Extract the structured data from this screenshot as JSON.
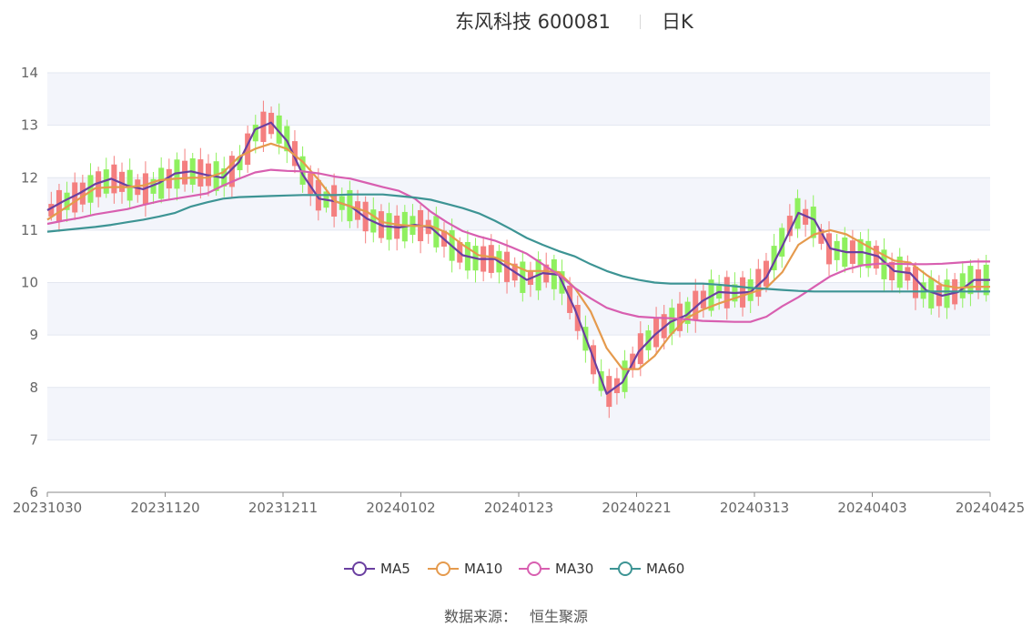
{
  "header": {
    "stock_name_code": "东风科技 600081",
    "period": "日K"
  },
  "source": {
    "label": "数据来源：",
    "value": "恒生聚源"
  },
  "colors": {
    "up": "#f47f7f",
    "down": "#8ff05e",
    "ma5": "#6a3fa0",
    "ma10": "#e59a4d",
    "ma30": "#d85fb0",
    "ma60": "#3d9494",
    "band": "#f3f5fb"
  },
  "chart_data": {
    "type": "candlestick",
    "ylim": [
      6,
      14
    ],
    "yticks": [
      6,
      7,
      8,
      9,
      10,
      11,
      12,
      13,
      14
    ],
    "xticks": [
      "20231030",
      "20231120",
      "20231211",
      "20240102",
      "20240123",
      "20240221",
      "20240313",
      "20240403",
      "20240425"
    ],
    "legend_position": "bottom-center",
    "series": [
      {
        "name": "MA5",
        "color": "#6a3fa0",
        "values": [
          11.38,
          11.55,
          11.7,
          11.88,
          11.98,
          11.85,
          11.78,
          11.9,
          12.08,
          12.12,
          12.05,
          12.0,
          12.3,
          12.92,
          13.05,
          12.7,
          12.05,
          11.6,
          11.55,
          11.45,
          11.22,
          11.08,
          11.05,
          11.1,
          11.05,
          10.78,
          10.52,
          10.45,
          10.45,
          10.25,
          10.05,
          10.18,
          10.15,
          9.5,
          8.7,
          7.88,
          8.1,
          8.68,
          9.0,
          9.25,
          9.38,
          9.65,
          9.82,
          9.8,
          9.82,
          10.1,
          10.7,
          11.33,
          11.2,
          10.65,
          10.58,
          10.58,
          10.5,
          10.22,
          10.18,
          9.85,
          9.75,
          9.82,
          10.05,
          10.05
        ]
      },
      {
        "name": "MA10",
        "color": "#e59a4d",
        "values": [
          11.2,
          11.4,
          11.6,
          11.8,
          11.82,
          11.82,
          11.85,
          11.95,
          11.98,
          12.0,
          12.0,
          12.1,
          12.4,
          12.55,
          12.65,
          12.55,
          12.3,
          11.95,
          11.55,
          11.45,
          11.35,
          11.15,
          11.1,
          11.08,
          11.08,
          10.95,
          10.72,
          10.52,
          10.48,
          10.35,
          10.22,
          10.22,
          10.2,
          9.9,
          9.45,
          8.75,
          8.35,
          8.35,
          8.6,
          9.0,
          9.32,
          9.48,
          9.6,
          9.7,
          9.8,
          9.9,
          10.2,
          10.72,
          10.92,
          11.0,
          10.92,
          10.75,
          10.58,
          10.42,
          10.38,
          10.15,
          9.95,
          9.9,
          9.92,
          9.92
        ]
      },
      {
        "name": "MA30",
        "color": "#d85fb0",
        "values": [
          11.12,
          11.18,
          11.23,
          11.3,
          11.35,
          11.4,
          11.48,
          11.55,
          11.6,
          11.65,
          11.7,
          11.85,
          11.98,
          12.1,
          12.15,
          12.13,
          12.12,
          12.08,
          12.02,
          11.98,
          11.9,
          11.82,
          11.75,
          11.6,
          11.35,
          11.15,
          10.98,
          10.88,
          10.8,
          10.68,
          10.55,
          10.35,
          10.15,
          9.9,
          9.7,
          9.52,
          9.42,
          9.35,
          9.33,
          9.32,
          9.3,
          9.27,
          9.26,
          9.25,
          9.25,
          9.35,
          9.55,
          9.72,
          9.92,
          10.12,
          10.25,
          10.33,
          10.36,
          10.36,
          10.35,
          10.35,
          10.36,
          10.38,
          10.4,
          10.4
        ]
      },
      {
        "name": "MA60",
        "color": "#3d9494",
        "values": [
          10.97,
          11.0,
          11.03,
          11.06,
          11.1,
          11.15,
          11.2,
          11.26,
          11.33,
          11.45,
          11.53,
          11.6,
          11.63,
          11.64,
          11.65,
          11.66,
          11.67,
          11.67,
          11.67,
          11.68,
          11.68,
          11.68,
          11.65,
          11.62,
          11.58,
          11.5,
          11.42,
          11.32,
          11.18,
          11.02,
          10.85,
          10.72,
          10.6,
          10.5,
          10.35,
          10.22,
          10.12,
          10.05,
          10.0,
          9.98,
          9.98,
          9.98,
          9.96,
          9.93,
          9.9,
          9.88,
          9.86,
          9.84,
          9.83,
          9.83,
          9.83,
          9.83,
          9.83,
          9.83,
          9.83,
          9.83,
          9.83,
          9.83,
          9.83,
          9.83
        ]
      }
    ]
  }
}
